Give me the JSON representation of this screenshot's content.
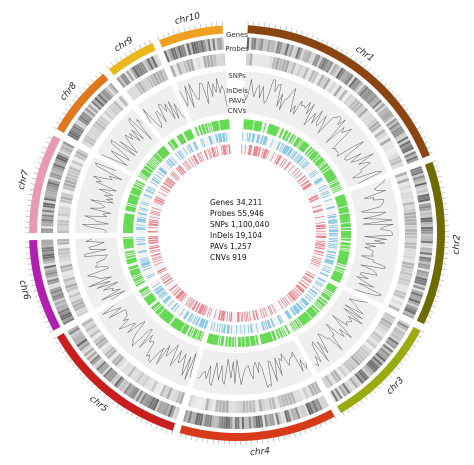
{
  "chromosomes": [
    {
      "name": "chr1",
      "color": "#8B4513"
    },
    {
      "name": "chr2",
      "color": "#6B6B00"
    },
    {
      "name": "chr3",
      "color": "#9AAA10"
    },
    {
      "name": "chr4",
      "color": "#D63A1A"
    },
    {
      "name": "chr5",
      "color": "#C81E1E"
    },
    {
      "name": "chr6",
      "color": "#B01FB0"
    },
    {
      "name": "chr7",
      "color": "#E89AB0"
    },
    {
      "name": "chr8",
      "color": "#E0781E"
    },
    {
      "name": "chr9",
      "color": "#E8B81E"
    },
    {
      "name": "chr10",
      "color": "#F0A020"
    }
  ],
  "track_labels": [
    "Genes",
    "Probes",
    "SNPs",
    "InDels",
    "PAVs",
    "CNVs"
  ],
  "track_colors": {
    "genes": "#888888",
    "probes": "#aaaaaa",
    "snps": "#555555",
    "indels": "#4FD63A",
    "pavs": "#5FB8E0",
    "cnvs": "#E84050"
  },
  "stats": [
    {
      "label": "Genes",
      "value": "34,211"
    },
    {
      "label": "Probes",
      "value": "55,946"
    },
    {
      "label": "SNPs",
      "value": "1,100,040"
    },
    {
      "label": "InDels",
      "value": "19,104"
    },
    {
      "label": "PAVs",
      "value": "1,257"
    },
    {
      "label": "CNVs",
      "value": "919"
    }
  ]
}
